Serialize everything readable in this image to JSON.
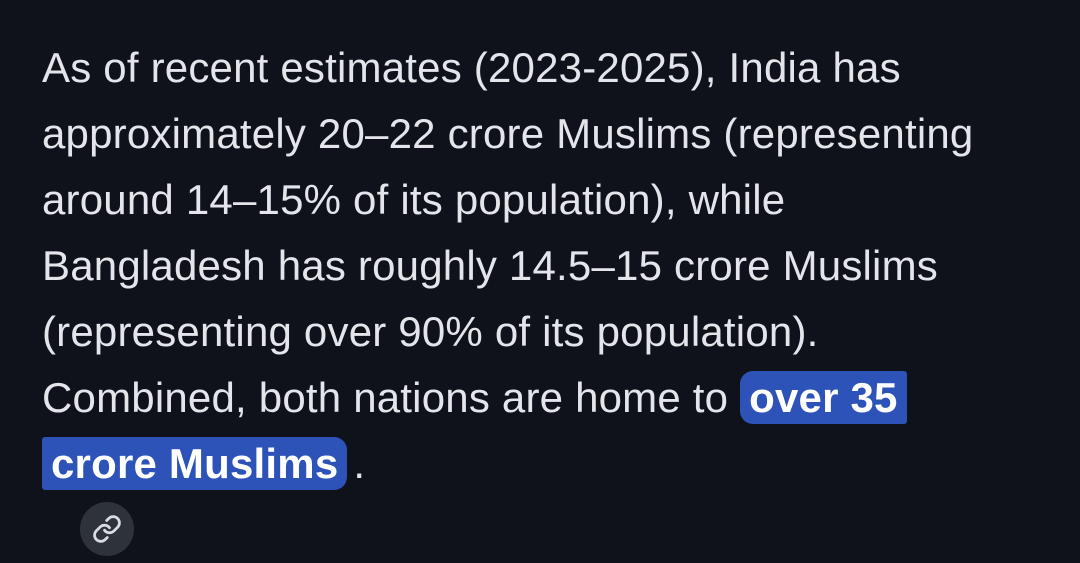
{
  "theme": {
    "background": "#0f121a",
    "text_color": "#e3e5ea",
    "highlight_bg": "#2d52b8",
    "highlight_text": "#ffffff",
    "link_button_bg": "#2e3339",
    "link_icon_color": "#d9dce2"
  },
  "response": {
    "full_text": "As of recent estimates (2023-2025), India has approximately 20–22 crore Muslims (representing around 14–15% of its population), while Bangladesh has roughly 14.5–15 crore Muslims (representing over 90% of its population). Combined, both nations are home to over 35 crore Muslims.",
    "highlighted_phrase": "over 35 crore Muslims",
    "citation_icon": "link-icon",
    "lines": [
      {
        "segments": [
          {
            "text": "As of recent estimates (2023-2025), India has",
            "highlight": false
          }
        ]
      },
      {
        "segments": [
          {
            "text": "approximately 20–22 crore Muslims (representing",
            "highlight": false
          }
        ]
      },
      {
        "segments": [
          {
            "text": "around 14–15% of its population), while",
            "highlight": false
          }
        ]
      },
      {
        "segments": [
          {
            "text": "Bangladesh has roughly 14.5–15 crore Muslims",
            "highlight": false
          }
        ]
      },
      {
        "segments": [
          {
            "text": "(representing over 90% of its population).",
            "highlight": false
          }
        ]
      },
      {
        "segments": [
          {
            "text": "Combined, both nations are home to ",
            "highlight": false
          },
          {
            "text": "over 35",
            "highlight": true
          }
        ]
      },
      {
        "segments": [
          {
            "text": "crore Muslims",
            "highlight": true
          },
          {
            "text": ".",
            "highlight": false
          }
        ],
        "citation_button": true
      }
    ]
  }
}
